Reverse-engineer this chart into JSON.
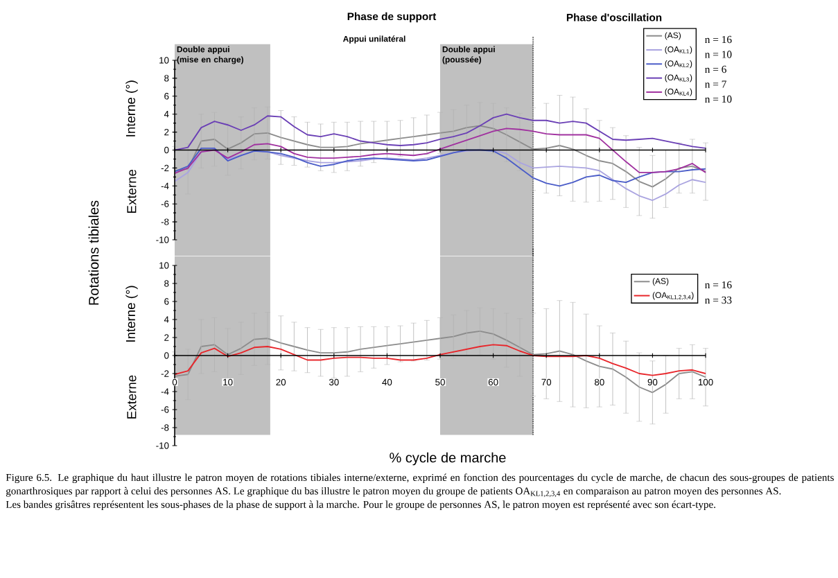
{
  "chart_data": [
    {
      "type": "line",
      "ylabel": "Rotations tibiales",
      "line_style": "solid",
      "legend": "top right",
      "tick_labels": "y",
      "x": [
        0,
        2.5,
        5,
        7.5,
        10,
        12.5,
        15,
        17.5,
        20,
        22.5,
        25,
        27.5,
        30,
        32.5,
        35,
        37.5,
        40,
        42.5,
        45,
        47.5,
        50,
        52.5,
        55,
        57.5,
        60,
        62.5,
        65,
        67.5,
        70,
        72.5,
        75,
        77.5,
        80,
        82.5,
        85,
        87.5,
        90,
        92.5,
        95,
        97.5,
        100
      ],
      "xlim": [
        0,
        100
      ],
      "xticks": [
        0,
        10,
        20,
        30,
        40,
        50,
        60,
        70,
        80,
        90,
        100
      ],
      "ylim": [
        -10,
        10
      ],
      "yticks": [
        -10,
        -8,
        -6,
        -4,
        -2,
        0,
        2,
        4,
        6,
        8,
        10
      ],
      "series": [
        {
          "name": "(AS)",
          "color": "#8c8c8c",
          "values": [
            -2.3,
            -2.1,
            1.0,
            1.2,
            0.1,
            0.8,
            1.8,
            1.9,
            1.4,
            1.0,
            0.6,
            0.3,
            0.3,
            0.4,
            0.7,
            0.9,
            1.1,
            1.3,
            1.5,
            1.7,
            1.9,
            2.1,
            2.5,
            2.7,
            2.4,
            1.7,
            0.9,
            0.1,
            0.2,
            0.5,
            0.1,
            -0.6,
            -1.2,
            -1.5,
            -2.4,
            -3.5,
            -4.1,
            -3.2,
            -2.0,
            -1.8,
            -2.4
          ],
          "errors": [
            2.7,
            2.8,
            3.0,
            3.0,
            2.9,
            2.9,
            2.9,
            2.9,
            3.0,
            2.7,
            2.5,
            2.6,
            2.8,
            2.7,
            2.5,
            2.3,
            2.1,
            2.0,
            2.1,
            2.2,
            2.3,
            2.4,
            2.5,
            2.6,
            2.8,
            3.0,
            3.2,
            4.6,
            5.0,
            5.6,
            5.8,
            5.2,
            4.5,
            4.0,
            4.0,
            3.8,
            3.5,
            3.2,
            2.8,
            3.0,
            3.2
          ]
        },
        {
          "name": "(OA$_{KL1}$)",
          "color": "#aaa4e0",
          "values": [
            -3.5,
            -2.5,
            -0.2,
            0.1,
            -1.0,
            -0.6,
            -0.1,
            -0.2,
            -0.6,
            -0.9,
            -1.2,
            -1.4,
            -1.4,
            -1.3,
            -1.2,
            -1.0,
            -0.9,
            -1.0,
            -1.1,
            -0.9,
            -0.6,
            -0.3,
            -0.1,
            0,
            0,
            -0.4,
            -1.4,
            -2.0,
            -1.9,
            -1.8,
            -1.9,
            -2.0,
            -2.3,
            -3.3,
            -4.3,
            -5.1,
            -5.6,
            -4.9,
            -3.9,
            -3.3,
            -3.6
          ]
        },
        {
          "name": "(OA$_{KL2}$)",
          "color": "#4a5cc8",
          "values": [
            -2.4,
            -1.8,
            0.2,
            0.2,
            -1.2,
            -0.6,
            -0.1,
            -0.2,
            -0.4,
            -0.8,
            -1.4,
            -1.8,
            -1.6,
            -1.2,
            -1.0,
            -0.9,
            -1.0,
            -1.1,
            -1.2,
            -1.1,
            -0.7,
            -0.3,
            0,
            0,
            -0.1,
            -0.9,
            -2.0,
            -3.1,
            -3.7,
            -4.0,
            -3.6,
            -3.0,
            -2.8,
            -3.4,
            -3.6,
            -3.0,
            -2.5,
            -2.4,
            -2.4,
            -2.2,
            -2.1
          ]
        },
        {
          "name": "(OA$_{KL3}$)",
          "color": "#6a3fb5",
          "values": [
            0,
            0.3,
            2.5,
            3.2,
            2.8,
            2.2,
            2.8,
            3.8,
            3.7,
            2.6,
            1.7,
            1.5,
            1.8,
            1.5,
            1.0,
            0.8,
            0.6,
            0.5,
            0.6,
            0.8,
            1.2,
            1.5,
            1.9,
            2.7,
            3.6,
            4.0,
            3.6,
            3.3,
            3.3,
            3.0,
            3.2,
            3.0,
            2.1,
            1.2,
            1.1,
            1.2,
            1.3,
            1.0,
            0.7,
            0.4,
            0.2
          ]
        },
        {
          "name": "(OA$_{KL4}$)",
          "color": "#a0309f",
          "values": [
            -2.6,
            -2.0,
            -0.2,
            0,
            -0.9,
            -0.2,
            0.6,
            0.7,
            0.4,
            -0.4,
            -0.8,
            -0.9,
            -0.9,
            -0.8,
            -0.7,
            -0.5,
            -0.4,
            -0.5,
            -0.6,
            -0.4,
            0.1,
            0.6,
            1.1,
            1.6,
            2.1,
            2.4,
            2.3,
            2.1,
            1.8,
            1.7,
            1.7,
            1.7,
            1.3,
            0,
            -1.3,
            -2.5,
            -2.5,
            -2.4,
            -2.1,
            -1.5,
            -2.5
          ]
        }
      ],
      "bands": [
        {
          "axis": "x",
          "from": 0,
          "to": 18,
          "label": "Double appui (mise en charge)",
          "color": "#c0c0c0"
        },
        {
          "axis": "x",
          "from": 50,
          "to": 67.5,
          "label": "Double appui (poussée)",
          "color": "#c0c0c0"
        }
      ],
      "ref_lines": [
        {
          "axis": "x",
          "value": 67.5,
          "line_style": "dotted"
        }
      ],
      "annotations": [
        "Phase de support",
        "Phase d'oscillation",
        "Appui unilatéral",
        "Interne (°)",
        "Externe",
        "n = 16",
        "n = 10",
        "n = 6",
        "n = 7",
        "n = 10"
      ]
    },
    {
      "type": "line",
      "xlabel": "% cycle de marche",
      "line_style": "solid",
      "legend": "top right",
      "x": [
        0,
        2.5,
        5,
        7.5,
        10,
        12.5,
        15,
        17.5,
        20,
        22.5,
        25,
        27.5,
        30,
        32.5,
        35,
        37.5,
        40,
        42.5,
        45,
        47.5,
        50,
        52.5,
        55,
        57.5,
        60,
        62.5,
        65,
        67.5,
        70,
        72.5,
        75,
        77.5,
        80,
        82.5,
        85,
        87.5,
        90,
        92.5,
        95,
        97.5,
        100
      ],
      "xlim": [
        0,
        100
      ],
      "xticks": [
        0,
        10,
        20,
        30,
        40,
        50,
        60,
        70,
        80,
        90,
        100
      ],
      "ylim": [
        -10,
        10
      ],
      "yticks": [
        -10,
        -8,
        -6,
        -4,
        -2,
        0,
        2,
        4,
        6,
        8,
        10
      ],
      "series": [
        {
          "name": "(AS)",
          "color": "#8c8c8c",
          "values": [
            -2.3,
            -2.1,
            1.0,
            1.2,
            0.1,
            0.8,
            1.8,
            1.9,
            1.4,
            1.0,
            0.6,
            0.3,
            0.3,
            0.4,
            0.7,
            0.9,
            1.1,
            1.3,
            1.5,
            1.7,
            1.9,
            2.1,
            2.5,
            2.7,
            2.4,
            1.7,
            0.9,
            0.1,
            0.2,
            0.5,
            0.1,
            -0.6,
            -1.2,
            -1.5,
            -2.4,
            -3.5,
            -4.1,
            -3.2,
            -2.0,
            -1.8,
            -2.4
          ],
          "errors": [
            2.7,
            2.8,
            3.0,
            3.0,
            2.9,
            2.9,
            2.9,
            2.9,
            3.0,
            2.7,
            2.5,
            2.6,
            2.8,
            2.7,
            2.5,
            2.3,
            2.1,
            2.0,
            2.1,
            2.2,
            2.3,
            2.4,
            2.5,
            2.6,
            2.8,
            3.0,
            3.2,
            4.6,
            5.0,
            5.6,
            5.8,
            5.2,
            4.5,
            4.0,
            4.0,
            3.8,
            3.5,
            3.2,
            2.8,
            3.0,
            3.2
          ]
        },
        {
          "name": "(OA$_{KL1,2,3,4}$)",
          "color": "#e8262b",
          "values": [
            -2.1,
            -1.7,
            0.3,
            0.8,
            -0.1,
            0.3,
            0.9,
            1.0,
            0.7,
            0.1,
            -0.5,
            -0.5,
            -0.3,
            -0.2,
            -0.2,
            -0.3,
            -0.3,
            -0.5,
            -0.5,
            -0.3,
            0.1,
            0.4,
            0.7,
            1.0,
            1.2,
            1.1,
            0.5,
            0,
            -0.1,
            -0.1,
            -0.1,
            0,
            -0.3,
            -0.9,
            -1.4,
            -2.0,
            -2.2,
            -2.0,
            -1.7,
            -1.6,
            -2.0
          ]
        }
      ],
      "bands": [
        {
          "axis": "x",
          "from": 0,
          "to": 18,
          "color": "#c0c0c0"
        },
        {
          "axis": "x",
          "from": 50,
          "to": 67.5,
          "color": "#c0c0c0"
        }
      ],
      "ref_lines": [
        {
          "axis": "x",
          "value": 67.5,
          "line_style": "dotted"
        }
      ],
      "annotations": [
        "Interne (°)",
        "Externe",
        "n = 16",
        "n = 33",
        "Figure 6.5. Le graphique du haut illustre le patron moyen de rotations tibiales interne/externe, exprimé en fonction des pourcentages du cycle de marche, de chacun des sous-groupes de patients gonarthrosiques par rapport à celui des personnes AS. Le graphique du bas illustre le patron moyen du groupe de patients OA$_{KL1,2,3,4}$ en comparaison au patron moyen des personnes AS.",
        "Les bandes grisâtres représentent les sous-phases de la phase de support à la marche. Pour le groupe de personnes AS, le patron moyen est représenté avec son écart-type."
      ]
    }
  ]
}
